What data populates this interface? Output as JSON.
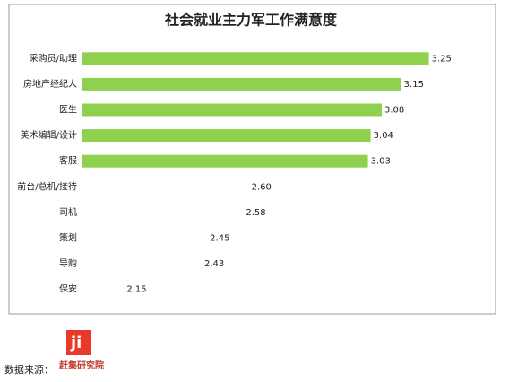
{
  "chart_data": {
    "type": "bar",
    "orientation": "horizontal",
    "title": "社会就业主力军工作满意度",
    "categories": [
      "采购员/助理",
      "房地产经纪人",
      "医生",
      "美术编辑/设计",
      "客服",
      "前台/总机/接待",
      "司机",
      "策划",
      "导购",
      "保安"
    ],
    "values": [
      3.25,
      3.15,
      3.08,
      3.04,
      3.03,
      2.6,
      2.58,
      2.45,
      2.43,
      2.15
    ],
    "value_labels": [
      "3.25",
      "3.15",
      "3.08",
      "3.04",
      "3.03",
      "2.60",
      "2.58",
      "2.45",
      "2.43",
      "2.15"
    ],
    "colors": [
      "#8fd14f",
      "#8fd14f",
      "#8fd14f",
      "#8fd14f",
      "#8fd14f",
      "#ffffff",
      "#ffffff",
      "#ffffff",
      "#ffffff",
      "#ffffff"
    ],
    "xlim": [
      2,
      3.4
    ]
  },
  "footer": {
    "source": "数据来源：",
    "logo": "赶集研究院"
  }
}
